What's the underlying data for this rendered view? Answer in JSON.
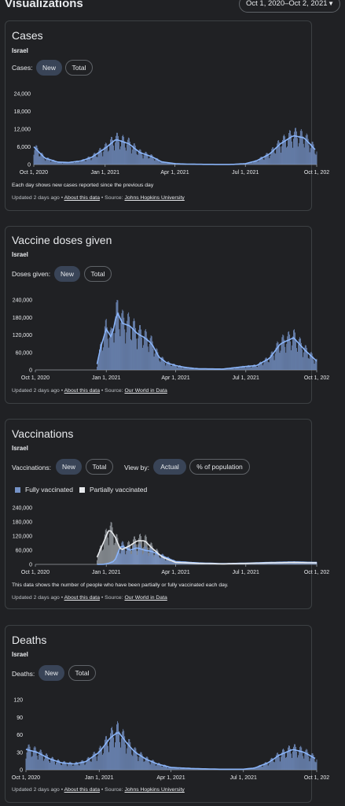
{
  "header": {
    "title": "Visualizations",
    "date_range": "Oct 1, 2020–Oct 2, 2021"
  },
  "colors": {
    "bar": "#7592c6",
    "line": "#8ab4f8",
    "partial": "#9aa0a6",
    "axis": "#9aa0a6"
  },
  "cards": {
    "cases": {
      "title": "Cases",
      "region": "Israel",
      "toggle_label": "Cases:",
      "btn_new": "New",
      "btn_total": "Total",
      "note": "Each day shows new cases reported since the previous day",
      "updated": "Updated 2 days ago",
      "about": "About this data",
      "source_prefix": "Source:",
      "source": "Johns Hopkins University"
    },
    "doses": {
      "title": "Vaccine doses given",
      "region": "Israel",
      "toggle_label": "Doses given:",
      "btn_new": "New",
      "btn_total": "Total",
      "updated": "Updated 2 days ago",
      "about": "About this data",
      "source_prefix": "Source:",
      "source": "Our World in Data"
    },
    "vacc": {
      "title": "Vaccinations",
      "region": "Israel",
      "toggle_label": "Vaccinations:",
      "btn_new": "New",
      "btn_total": "Total",
      "viewby_label": "View by:",
      "btn_actual": "Actual",
      "btn_pct": "% of population",
      "legend_full": "Fully vaccinated",
      "legend_partial": "Partially vaccinated",
      "note": "This data shows the number of people who have been partially or fully vaccinated each day.",
      "updated": "Updated 2 days ago",
      "about": "About this data",
      "source_prefix": "Source:",
      "source": "Our World in Data"
    },
    "deaths": {
      "title": "Deaths",
      "region": "Israel",
      "toggle_label": "Deaths:",
      "btn_new": "New",
      "btn_total": "Total",
      "updated": "Updated 2 days ago",
      "about": "About this data",
      "source_prefix": "Source:",
      "source": "Johns Hopkins University"
    }
  },
  "chart_data": [
    {
      "id": "cases",
      "type": "bar",
      "x_ticks": [
        "Oct 1, 2020",
        "Jan 1, 2021",
        "Apr 1, 2021",
        "Jul 1, 2021",
        "Oct 1, 202"
      ],
      "y_ticks": [
        "0",
        "6,000",
        "12,000",
        "18,000",
        "24,000"
      ],
      "ylim": [
        0,
        24000
      ],
      "x": [
        "2020-10-01",
        "2020-10-15",
        "2020-11-01",
        "2020-11-15",
        "2020-12-01",
        "2020-12-15",
        "2021-01-01",
        "2021-01-15",
        "2021-02-01",
        "2021-02-15",
        "2021-03-01",
        "2021-03-15",
        "2021-04-01",
        "2021-04-15",
        "2021-05-01",
        "2021-06-01",
        "2021-06-15",
        "2021-07-01",
        "2021-07-15",
        "2021-08-01",
        "2021-08-15",
        "2021-09-01",
        "2021-09-15",
        "2021-10-01"
      ],
      "series": [
        {
          "values": [
            6000,
            2200,
            800,
            700,
            1200,
            2500,
            5500,
            8500,
            7000,
            4000,
            2800,
            900,
            300,
            150,
            80,
            20,
            50,
            300,
            1200,
            3500,
            7000,
            9800,
            9000,
            4500
          ]
        }
      ]
    },
    {
      "id": "doses",
      "type": "bar",
      "x_ticks": [
        "Oct 1, 2020",
        "Jan 1, 2021",
        "Apr 1, 2021",
        "Jul 1, 2021",
        "Oct 1, 202"
      ],
      "y_ticks": [
        "0",
        "60,000",
        "120,000",
        "180,000",
        "240,000"
      ],
      "ylim": [
        0,
        240000
      ],
      "x": [
        "2020-12-20",
        "2020-12-25",
        "2021-01-01",
        "2021-01-08",
        "2021-01-15",
        "2021-01-22",
        "2021-02-01",
        "2021-02-10",
        "2021-02-20",
        "2021-03-01",
        "2021-03-10",
        "2021-03-20",
        "2021-04-01",
        "2021-04-15",
        "2021-05-01",
        "2021-06-01",
        "2021-07-01",
        "2021-07-15",
        "2021-08-01",
        "2021-08-15",
        "2021-09-01",
        "2021-09-15",
        "2021-10-01"
      ],
      "series": [
        {
          "values": [
            20000,
            80000,
            140000,
            110000,
            200000,
            160000,
            150000,
            125000,
            110000,
            90000,
            45000,
            25000,
            15000,
            8000,
            4000,
            3000,
            12000,
            15000,
            40000,
            90000,
            110000,
            70000,
            30000
          ]
        }
      ]
    },
    {
      "id": "vaccinations",
      "type": "bar",
      "x_ticks": [
        "Oct 1, 2020",
        "Jan 1, 2021",
        "Apr 1, 2021",
        "Jul 1, 2021",
        "Oct 1, 202"
      ],
      "y_ticks": [
        "0",
        "60,000",
        "120,000",
        "180,000",
        "240,000"
      ],
      "ylim": [
        0,
        240000
      ],
      "x": [
        "2020-12-20",
        "2020-12-28",
        "2021-01-05",
        "2021-01-12",
        "2021-01-20",
        "2021-02-01",
        "2021-02-10",
        "2021-02-20",
        "2021-03-01",
        "2021-03-15",
        "2021-04-01",
        "2021-05-01",
        "2021-06-01",
        "2021-07-01",
        "2021-08-01",
        "2021-09-01",
        "2021-10-01"
      ],
      "series": [
        {
          "name": "Fully vaccinated",
          "values": [
            0,
            0,
            5000,
            15000,
            80000,
            60000,
            70000,
            60000,
            55000,
            35000,
            12000,
            6000,
            3000,
            5000,
            8000,
            10000,
            8000
          ]
        },
        {
          "name": "Partially vaccinated",
          "values": [
            30000,
            90000,
            150000,
            120000,
            60000,
            80000,
            100000,
            100000,
            70000,
            30000,
            8000,
            4000,
            2000,
            4000,
            6000,
            8000,
            6000
          ]
        }
      ]
    },
    {
      "id": "deaths",
      "type": "bar",
      "x_ticks": [
        "Oct 1, 2020",
        "Jan 1, 2021",
        "Apr 1, 2021",
        "Jul 1, 2021",
        "Oct 1, 202"
      ],
      "y_ticks": [
        "0",
        "30",
        "60",
        "90",
        "120"
      ],
      "ylim": [
        0,
        120
      ],
      "x": [
        "2020-10-01",
        "2020-10-15",
        "2020-11-01",
        "2020-11-15",
        "2020-12-01",
        "2020-12-15",
        "2021-01-01",
        "2021-01-15",
        "2021-01-25",
        "2021-02-05",
        "2021-02-15",
        "2021-03-01",
        "2021-03-15",
        "2021-04-01",
        "2021-05-01",
        "2021-06-01",
        "2021-07-01",
        "2021-07-15",
        "2021-08-01",
        "2021-08-15",
        "2021-09-01",
        "2021-09-15",
        "2021-10-01"
      ],
      "series": [
        {
          "values": [
            35,
            30,
            18,
            12,
            10,
            14,
            30,
            55,
            65,
            45,
            30,
            18,
            10,
            4,
            2,
            1,
            1,
            3,
            12,
            25,
            35,
            30,
            18
          ]
        }
      ]
    }
  ]
}
